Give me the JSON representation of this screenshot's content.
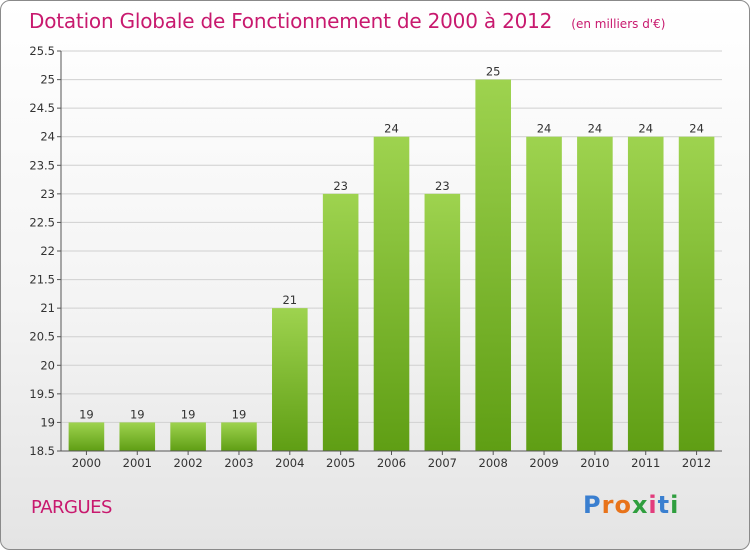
{
  "title": "Dotation Globale de Fonctionnement de 2000 à 2012",
  "unit_note": "(en milliers d'€)",
  "place_name": "PARGUES",
  "logo": {
    "text": "Proxiti",
    "letters": [
      "P",
      "r",
      "o",
      "x",
      "i",
      "t",
      "i"
    ],
    "letter_colors": [
      "#3a7fd0",
      "#e8731a",
      "#e8731a",
      "#2f9e3e",
      "#e23c7c",
      "#3a7fd0",
      "#2f9e3e"
    ]
  },
  "colors": {
    "title": "#c8196e",
    "bar_top": "#9ed34f",
    "bar_bottom": "#5f9e14",
    "grid": "#d0d0d0",
    "axis": "#555555"
  },
  "chart_data": {
    "type": "bar",
    "categories": [
      "2000",
      "2001",
      "2002",
      "2003",
      "2004",
      "2005",
      "2006",
      "2007",
      "2008",
      "2009",
      "2010",
      "2011",
      "2012"
    ],
    "values": [
      19,
      19,
      19,
      19,
      21,
      23,
      24,
      23,
      25,
      24,
      24,
      24,
      24
    ],
    "ylim": [
      18.5,
      25.5
    ],
    "yticks": [
      "18.5",
      "19",
      "19.5",
      "20",
      "20.5",
      "21",
      "21.5",
      "22",
      "22.5",
      "23",
      "23.5",
      "24",
      "24.5",
      "25",
      "25.5"
    ],
    "grid": true
  }
}
